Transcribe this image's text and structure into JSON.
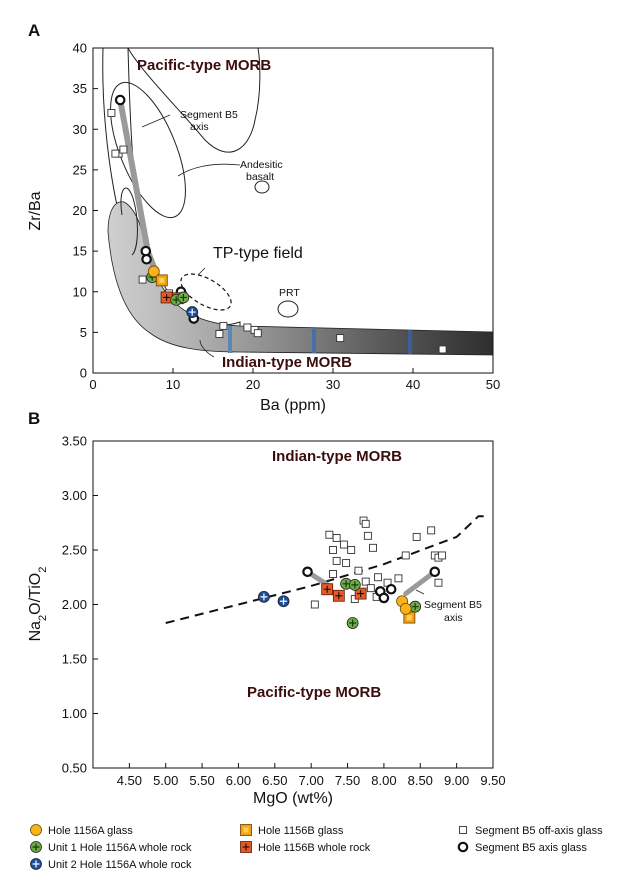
{
  "chart_data": [
    {
      "panel": "A",
      "type": "scatter",
      "xlabel": "Ba (ppm)",
      "ylabel": "Zr/Ba",
      "xlim": [
        0,
        50
      ],
      "ylim": [
        0,
        40
      ],
      "xticks": [
        0,
        10,
        20,
        30,
        40,
        50
      ],
      "yticks": [
        0,
        5,
        10,
        15,
        20,
        25,
        30,
        35,
        40
      ],
      "annotations": {
        "pacific": "Pacific-type MORB",
        "indian": "Indian-type MORB",
        "tp_field": "TP-type field",
        "segment_axis_line1": "Segment B5",
        "segment_axis_line2": "axis",
        "andesitic_line1": "Andesitic",
        "andesitic_line2": "basalt",
        "prt": "PRT"
      },
      "series": [
        {
          "name": "Segment B5 off-axis glass",
          "marker": "open-square",
          "points": [
            [
              2.3,
              32
            ],
            [
              3.2,
              27
            ],
            [
              3.8,
              27.5
            ],
            [
              2.8,
              27
            ],
            [
              6.2,
              11.5
            ],
            [
              9.5,
              9.8
            ],
            [
              15.8,
              4.8
            ],
            [
              16.3,
              5.8
            ],
            [
              19.3,
              5.6
            ],
            [
              20.2,
              5.3
            ],
            [
              20.6,
              4.9
            ],
            [
              30.9,
              4.3
            ],
            [
              43.7,
              2.9
            ]
          ]
        },
        {
          "name": "Segment B5 axis glass",
          "marker": "open-circle",
          "points": [
            [
              3.4,
              33.6
            ],
            [
              6.6,
              15
            ],
            [
              6.7,
              14
            ],
            [
              11,
              10
            ],
            [
              12.6,
              6.7
            ]
          ]
        },
        {
          "name": "Hole 1156A glass",
          "marker": "yellow-circle",
          "points": [
            [
              7.6,
              12.5
            ]
          ]
        },
        {
          "name": "Unit 1 Hole 1156A whole rock",
          "marker": "green-plus",
          "points": [
            [
              7.4,
              11.8
            ],
            [
              10.4,
              9
            ],
            [
              11.3,
              9.3
            ]
          ]
        },
        {
          "name": "Unit 2 Hole 1156A whole rock",
          "marker": "blue-plus",
          "points": [
            [
              12.4,
              7.5
            ]
          ]
        },
        {
          "name": "Hole 1156B glass",
          "marker": "orange-square",
          "points": [
            [
              8.6,
              11.4
            ]
          ]
        },
        {
          "name": "Hole 1156B whole rock",
          "marker": "red-plus",
          "points": [
            [
              9.2,
              9.3
            ],
            [
              10.6,
              9.2
            ]
          ]
        }
      ]
    },
    {
      "panel": "B",
      "type": "scatter",
      "xlabel": "MgO (wt%)",
      "ylabel_main": "Na",
      "ylabel_sub1": "2",
      "ylabel_mid": "O/TiO",
      "ylabel_sub2": "2",
      "xlim": [
        4.0,
        9.5
      ],
      "ylim": [
        0.5,
        3.5
      ],
      "xticks": [
        "4.50",
        "5.00",
        "5.50",
        "6.00",
        "6.50",
        "7.00",
        "7.50",
        "8.00",
        "8.50",
        "9.00",
        "9.50"
      ],
      "yticks": [
        "0.50",
        "1.00",
        "1.50",
        "2.00",
        "2.50",
        "3.00",
        "3.50"
      ],
      "annotations": {
        "indian": "Indian-type MORB",
        "pacific": "Pacific-type MORB",
        "segment_axis_line1": "Segment B5",
        "segment_axis_line2": "axis"
      },
      "boundary_line": [
        [
          5.0,
          1.83
        ],
        [
          6.0,
          2.0
        ],
        [
          7.0,
          2.17
        ],
        [
          8.0,
          2.37
        ],
        [
          9.0,
          2.62
        ],
        [
          9.3,
          2.81
        ],
        [
          9.45,
          2.81
        ]
      ],
      "series": [
        {
          "name": "Segment B5 off-axis glass",
          "marker": "open-square",
          "points": [
            [
              7.25,
              2.64
            ],
            [
              7.35,
              2.61
            ],
            [
              7.3,
              2.5
            ],
            [
              7.45,
              2.55
            ],
            [
              7.55,
              2.5
            ],
            [
              7.35,
              2.4
            ],
            [
              7.48,
              2.38
            ],
            [
              7.72,
              2.77
            ],
            [
              7.75,
              2.74
            ],
            [
              7.78,
              2.63
            ],
            [
              7.65,
              2.31
            ],
            [
              7.75,
              2.21
            ],
            [
              7.82,
              2.15
            ],
            [
              7.05,
              2.0
            ],
            [
              7.6,
              2.05
            ],
            [
              7.9,
              2.07
            ],
            [
              8.3,
              2.45
            ],
            [
              8.45,
              2.62
            ],
            [
              8.65,
              2.68
            ],
            [
              8.7,
              2.45
            ],
            [
              8.75,
              2.43
            ],
            [
              8.8,
              2.45
            ],
            [
              8.75,
              2.2
            ],
            [
              8.2,
              2.24
            ],
            [
              7.85,
              2.52
            ],
            [
              7.92,
              2.25
            ],
            [
              8.05,
              2.2
            ],
            [
              7.3,
              2.28
            ]
          ]
        },
        {
          "name": "Segment B5 axis glass",
          "marker": "open-circle",
          "points": [
            [
              6.95,
              2.3
            ],
            [
              7.95,
              2.12
            ],
            [
              8.0,
              2.06
            ],
            [
              8.1,
              2.14
            ],
            [
              8.7,
              2.3
            ]
          ]
        },
        {
          "name": "Hole 1156A glass",
          "marker": "yellow-circle",
          "points": [
            [
              8.25,
              2.03
            ],
            [
              8.3,
              1.96
            ]
          ]
        },
        {
          "name": "Unit 1 Hole 1156A whole rock",
          "marker": "green-plus",
          "points": [
            [
              7.48,
              2.19
            ],
            [
              7.6,
              2.18
            ],
            [
              7.57,
              1.83
            ],
            [
              8.43,
              1.98
            ]
          ]
        },
        {
          "name": "Unit 2 Hole 1156A whole rock",
          "marker": "blue-plus",
          "points": [
            [
              6.35,
              2.07
            ],
            [
              6.62,
              2.03
            ]
          ]
        },
        {
          "name": "Hole 1156B glass",
          "marker": "orange-square",
          "points": [
            [
              8.35,
              1.88
            ]
          ]
        },
        {
          "name": "Hole 1156B whole rock",
          "marker": "red-plus",
          "points": [
            [
              7.22,
              2.14
            ],
            [
              7.38,
              2.08
            ],
            [
              7.68,
              2.1
            ]
          ]
        }
      ]
    }
  ],
  "legend": {
    "items": [
      {
        "name": "Hole 1156A glass",
        "marker": "yellow-circle"
      },
      {
        "name": "Unit 1 Hole 1156A whole rock",
        "marker": "green-plus"
      },
      {
        "name": "Unit 2 Hole 1156A whole rock",
        "marker": "blue-plus"
      },
      {
        "name": "Hole 1156B glass",
        "marker": "orange-square"
      },
      {
        "name": "Hole 1156B whole rock",
        "marker": "red-plus"
      },
      {
        "name": "Segment B5 off-axis glass",
        "marker": "open-square"
      },
      {
        "name": "Segment B5 axis glass",
        "marker": "open-circle"
      }
    ]
  },
  "colors": {
    "yellow": "#f7b21c",
    "green": "#6cae45",
    "blue": "#1b4ea0",
    "orange": "#f3a21a",
    "red": "#e35a2a",
    "field_fill": "#cdcdcd",
    "axis_trend": "#9a9a9a",
    "field_text": "#3a0e0e"
  }
}
